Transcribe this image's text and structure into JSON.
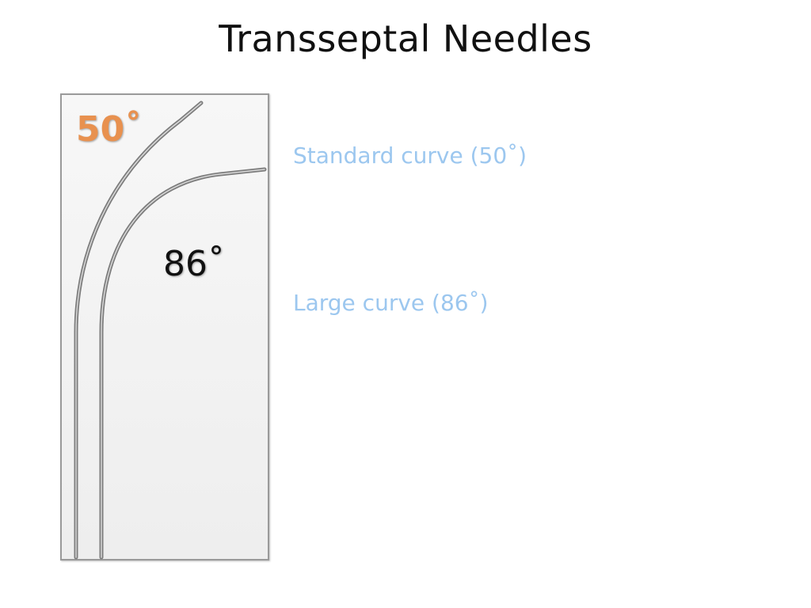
{
  "slide": {
    "title": "Transseptal Needles"
  },
  "figure": {
    "angle_standard_label": "50˚",
    "angle_large_label": "86˚",
    "standard_color": "#e8914f",
    "large_color": "#111111",
    "needle_color": "#8a8a8a"
  },
  "captions": {
    "standard": "Standard curve (50˚)",
    "large": "Large curve (86˚)",
    "color": "#9cc7ef"
  }
}
